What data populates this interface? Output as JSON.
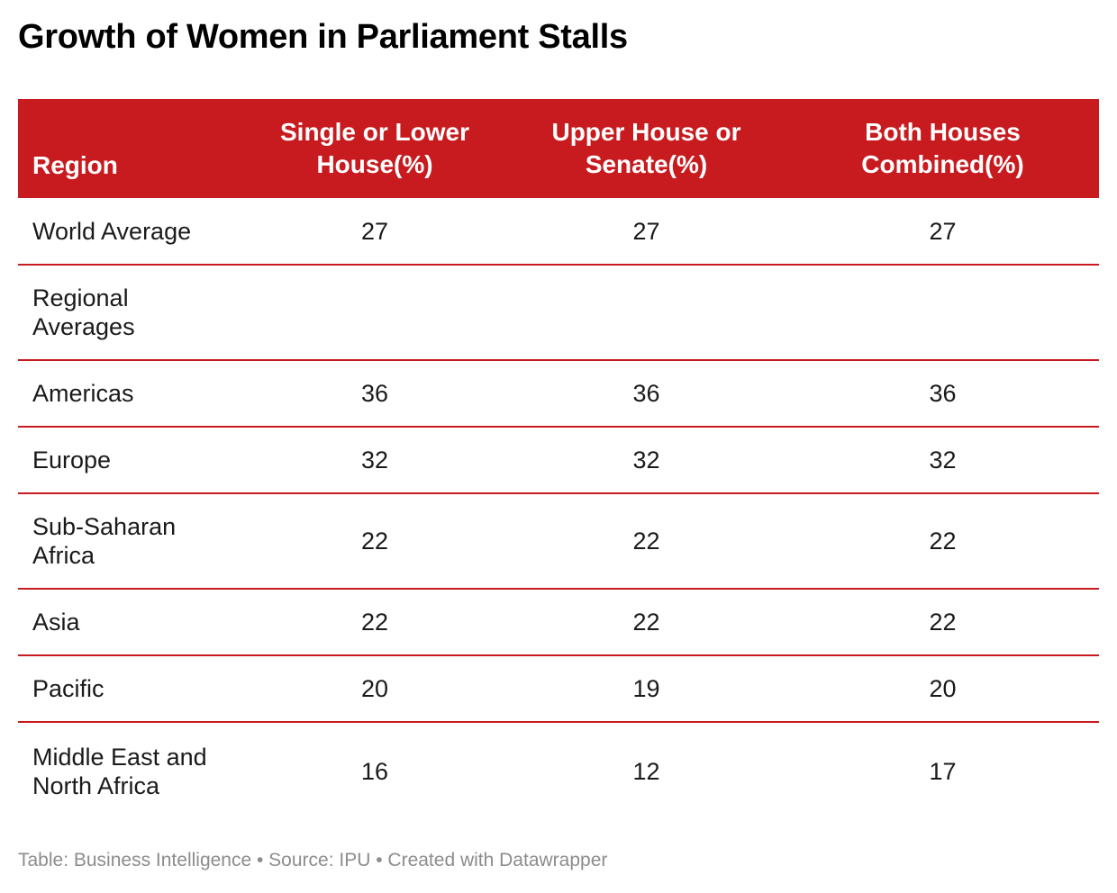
{
  "title": "Growth of Women in Parliament Stalls",
  "table": {
    "columns": [
      "Region",
      "Single or Lower House(%)",
      "Upper House or Senate(%)",
      "Both Houses Combined(%)"
    ],
    "rows": [
      {
        "region": "World Average",
        "lower": "27",
        "upper": "27",
        "both": "27"
      },
      {
        "region": "Regional Averages",
        "lower": "",
        "upper": "",
        "both": ""
      },
      {
        "region": "Americas",
        "lower": "36",
        "upper": "36",
        "both": "36"
      },
      {
        "region": "Europe",
        "lower": "32",
        "upper": "32",
        "both": "32"
      },
      {
        "region": "Sub-Saharan Africa",
        "lower": "22",
        "upper": "22",
        "both": "22"
      },
      {
        "region": "Asia",
        "lower": "22",
        "upper": "22",
        "both": "22"
      },
      {
        "region": "Pacific",
        "lower": "20",
        "upper": "19",
        "both": "20"
      },
      {
        "region": "Middle East and North Africa",
        "lower": "16",
        "upper": "12",
        "both": "17"
      }
    ]
  },
  "footer": "Table: Business Intelligence • Source: IPU • Created with Datawrapper",
  "colors": {
    "header_bg": "#c81b1f",
    "header_text": "#ffffff",
    "row_divider": "#c81b1f",
    "footer_text": "#8c8c8c"
  },
  "chart_data": {
    "type": "table",
    "title": "Growth of Women in Parliament Stalls",
    "columns": [
      "Region",
      "Single or Lower House(%)",
      "Upper House or Senate(%)",
      "Both Houses Combined(%)"
    ],
    "rows": [
      [
        "World Average",
        27,
        27,
        27
      ],
      [
        "Regional Averages",
        null,
        null,
        null
      ],
      [
        "Americas",
        36,
        36,
        36
      ],
      [
        "Europe",
        32,
        32,
        32
      ],
      [
        "Sub-Saharan Africa",
        22,
        22,
        22
      ],
      [
        "Asia",
        22,
        22,
        22
      ],
      [
        "Pacific",
        20,
        19,
        20
      ],
      [
        "Middle East and North Africa",
        16,
        12,
        17
      ]
    ]
  }
}
